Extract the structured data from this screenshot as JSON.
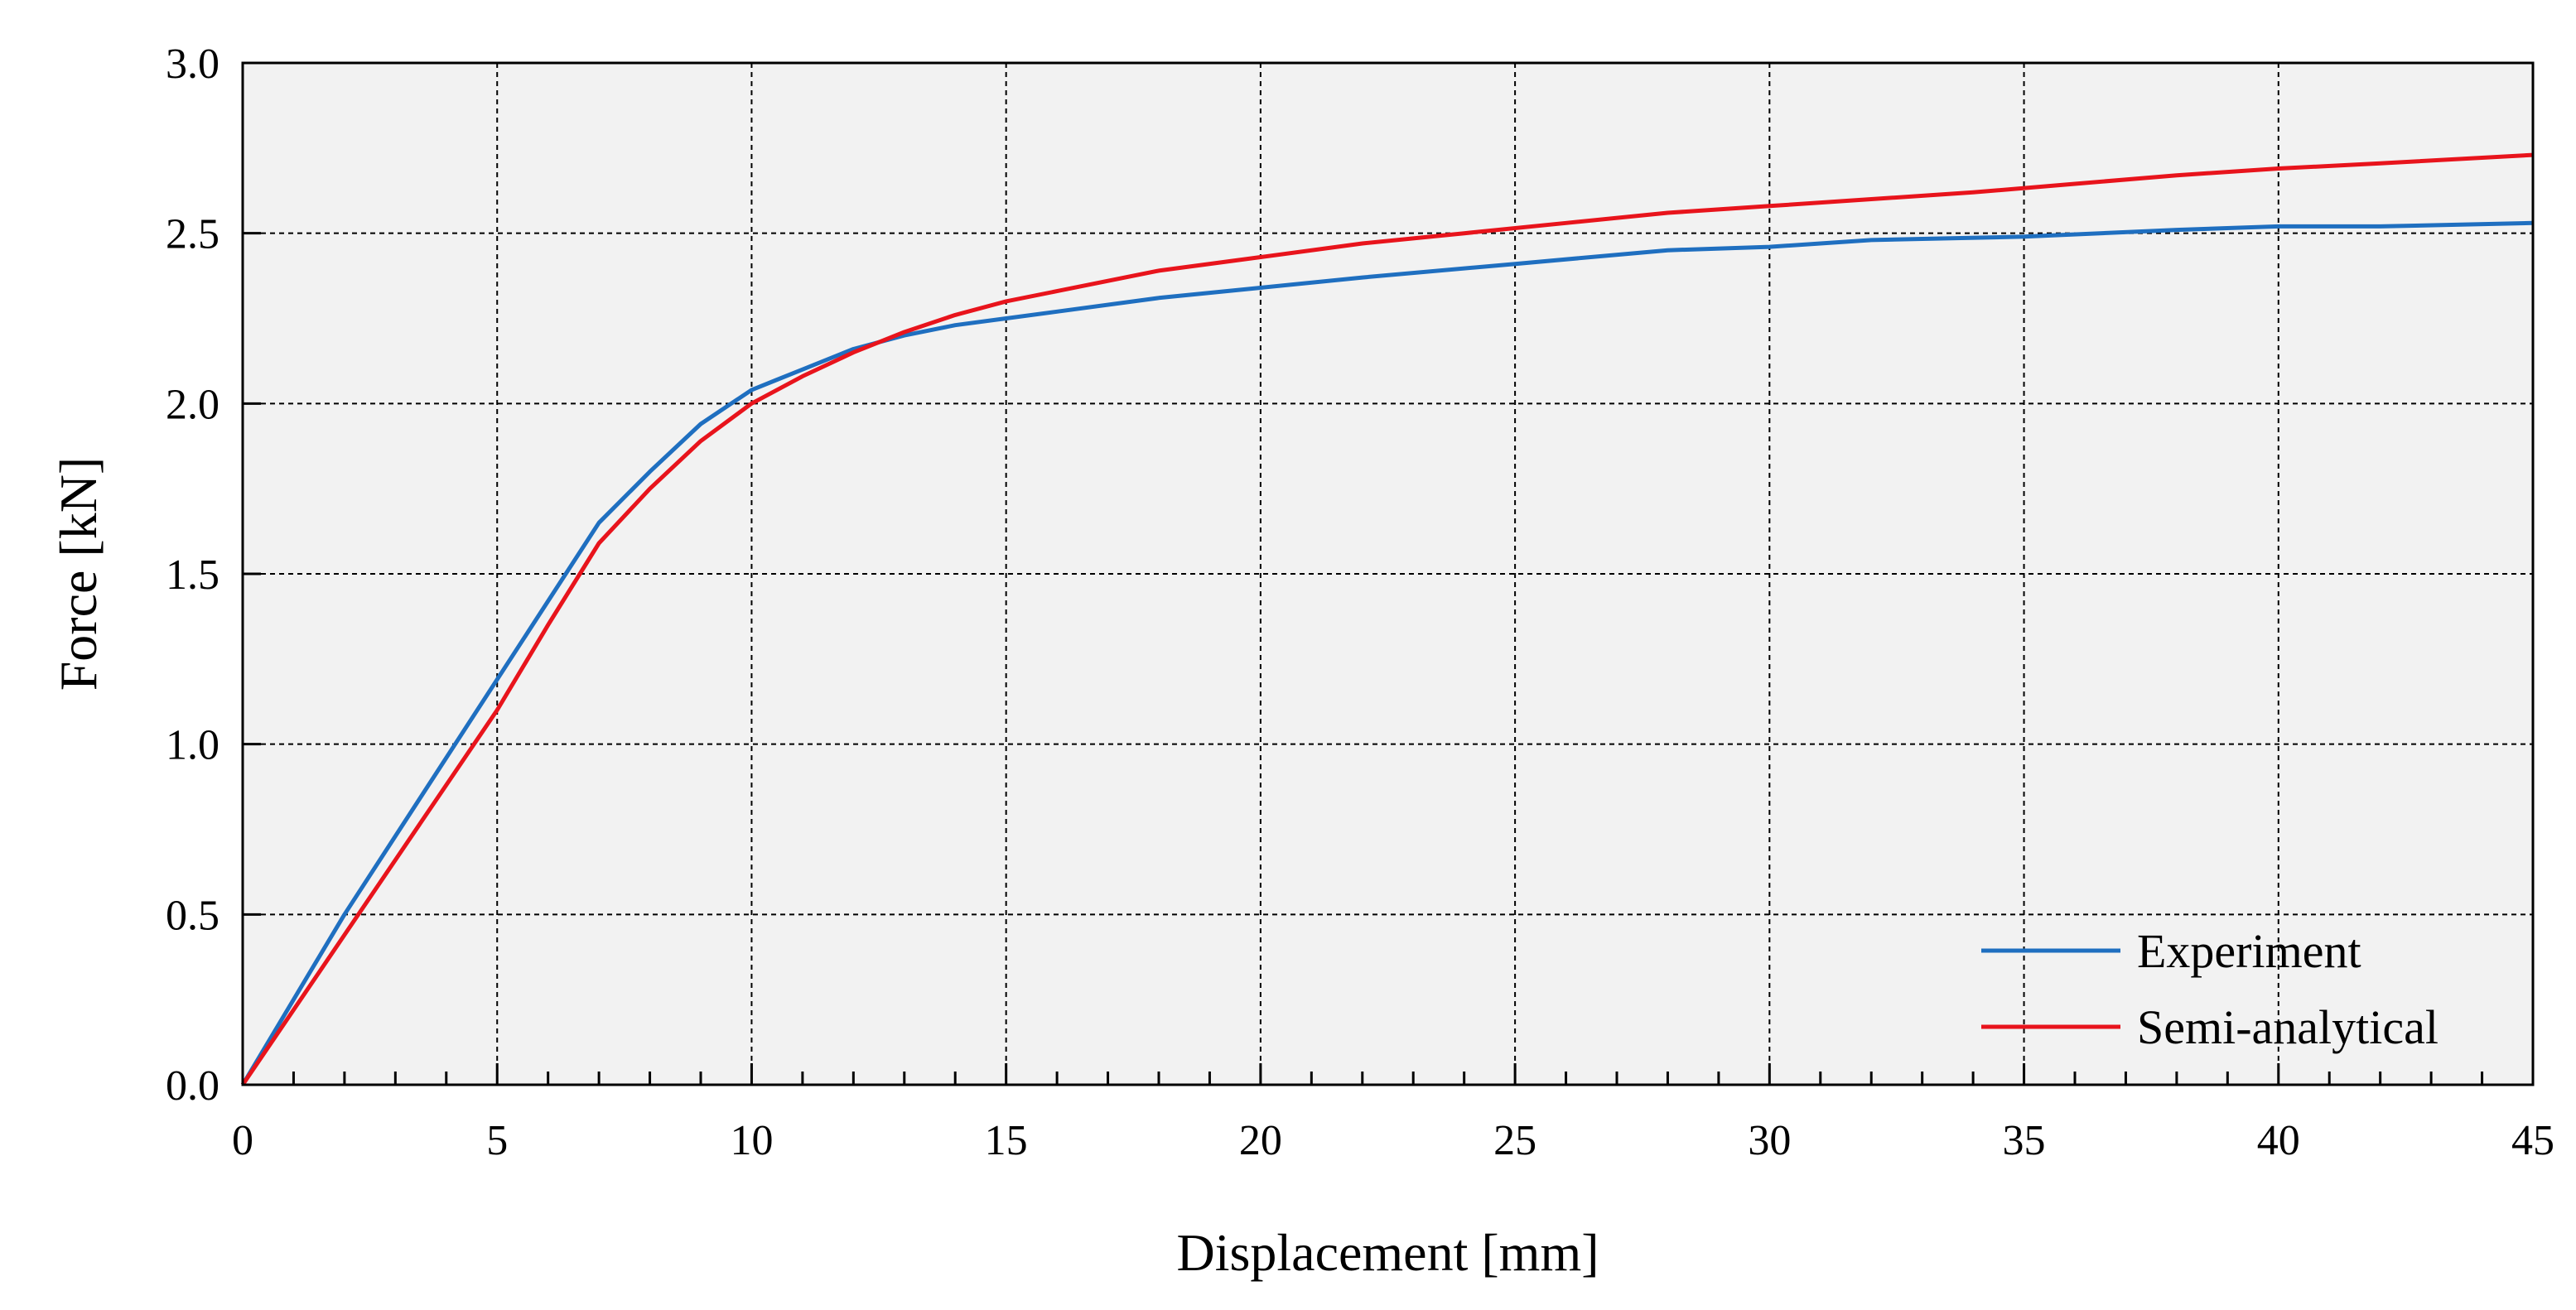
{
  "chart_data": {
    "type": "line",
    "title": "",
    "xlabel": "Displacement [mm]",
    "ylabel": "Force [kN]",
    "xlim": [
      0,
      45
    ],
    "ylim": [
      0,
      3.0
    ],
    "x_ticks": [
      0,
      5,
      10,
      15,
      20,
      25,
      30,
      35,
      40,
      45
    ],
    "x_tick_labels": [
      "0",
      "5",
      "10",
      "15",
      "20",
      "25",
      "30",
      "35",
      "40",
      "45"
    ],
    "y_ticks": [
      0,
      0.5,
      1.0,
      1.5,
      2.0,
      2.5,
      3.0
    ],
    "y_tick_labels": [
      "0.0",
      "0.5",
      "1.0",
      "1.5",
      "2.0",
      "2.5",
      "3.0"
    ],
    "x_minor_step": 1,
    "grid": true,
    "legend_position": "bottom-right",
    "background": "#f2f2f2",
    "series": [
      {
        "name": "Experiment",
        "color": "#1f6fc0",
        "x": [
          0,
          2,
          4,
          6,
          7,
          8,
          9,
          10,
          10.5,
          11,
          12,
          13,
          14,
          15,
          16,
          18,
          20,
          22,
          25,
          28,
          30,
          32,
          35,
          38,
          40,
          42,
          45
        ],
        "y": [
          0,
          0.5,
          0.96,
          1.42,
          1.65,
          1.8,
          1.94,
          2.04,
          2.07,
          2.1,
          2.16,
          2.2,
          2.23,
          2.25,
          2.27,
          2.31,
          2.34,
          2.37,
          2.41,
          2.45,
          2.46,
          2.48,
          2.49,
          2.51,
          2.52,
          2.52,
          2.53
        ]
      },
      {
        "name": "Semi-analytical",
        "color": "#e8141c",
        "x": [
          0,
          2,
          4,
          5,
          6,
          7,
          8,
          9,
          10,
          11,
          12,
          13,
          14,
          15,
          16,
          18,
          20,
          22,
          24,
          26,
          28,
          30,
          32,
          34,
          36,
          38,
          40,
          42,
          45
        ],
        "y": [
          0,
          0.44,
          0.88,
          1.1,
          1.35,
          1.59,
          1.75,
          1.89,
          2.0,
          2.08,
          2.15,
          2.21,
          2.26,
          2.3,
          2.33,
          2.39,
          2.43,
          2.47,
          2.5,
          2.53,
          2.56,
          2.58,
          2.6,
          2.62,
          2.645,
          2.67,
          2.69,
          2.705,
          2.73
        ]
      }
    ]
  }
}
